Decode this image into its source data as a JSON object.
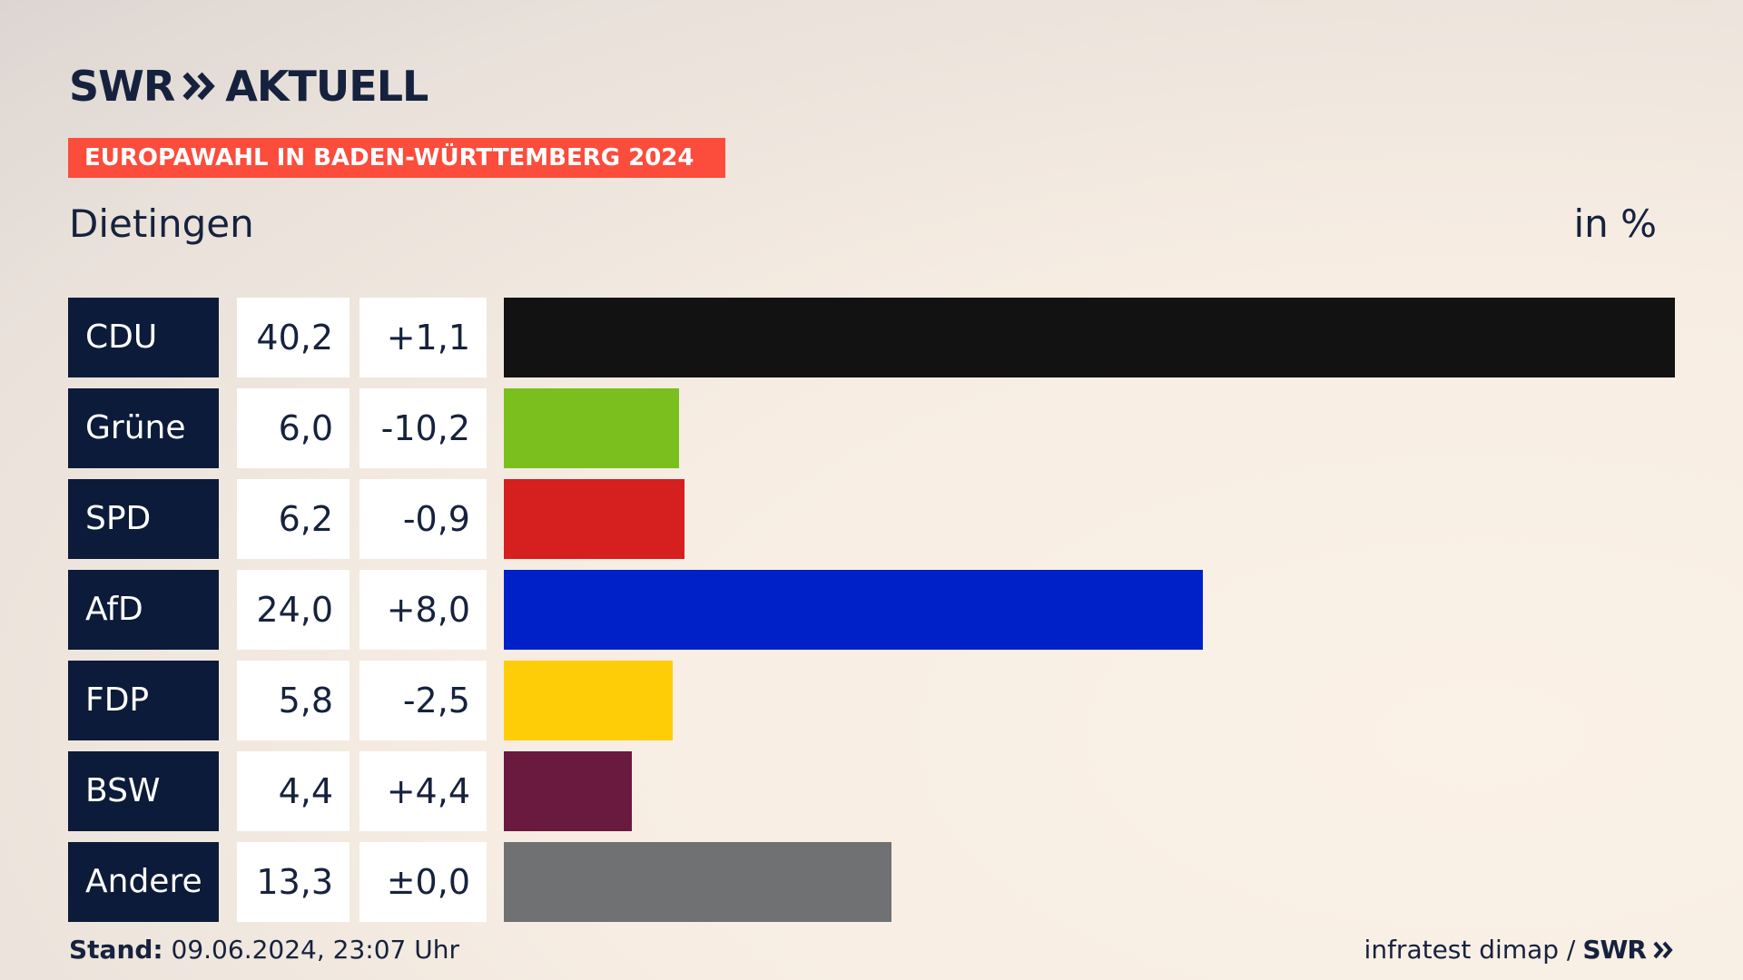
{
  "brand": {
    "logo_left": "SWR",
    "logo_right": "AKTUELL"
  },
  "banner": "EUROPAWAHL IN BADEN-WÜRTTEMBERG 2024",
  "location": "Dietingen",
  "unit": "in %",
  "footer": {
    "stand_label": "Stand:",
    "stand_value": "09.06.2024, 23:07 Uhr",
    "source": "infratest dimap /",
    "source_brand": "SWR"
  },
  "chart_data": {
    "type": "bar",
    "orientation": "horizontal",
    "categories": [
      "CDU",
      "Grüne",
      "SPD",
      "AfD",
      "FDP",
      "BSW",
      "Andere"
    ],
    "values": [
      40.2,
      6.0,
      6.2,
      24.0,
      5.8,
      4.4,
      13.3
    ],
    "value_labels": [
      "40,2",
      "6,0",
      "6,2",
      "24,0",
      "5,8",
      "4,4",
      "13,3"
    ],
    "change_labels": [
      "+1,1",
      "-10,2",
      "-0,9",
      "+8,0",
      "-2,5",
      "+4,4",
      "±0,0"
    ],
    "colors": [
      "#121212",
      "#7bbf1e",
      "#d61f1f",
      "#0021c8",
      "#ffcd08",
      "#6a1a3e",
      "#707173"
    ],
    "xlim": [
      0,
      40.2
    ]
  }
}
